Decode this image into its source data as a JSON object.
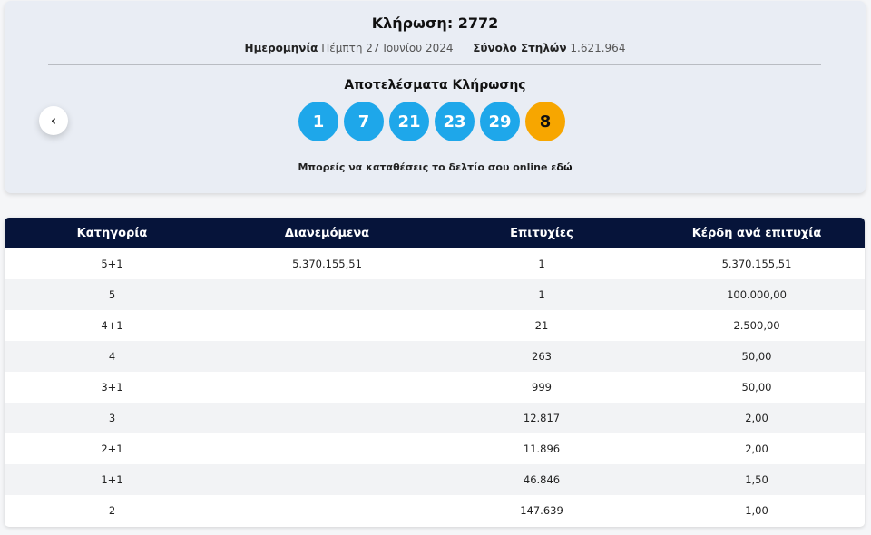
{
  "draw": {
    "title": "Κλήρωση: 2772",
    "date_label": "Ημερομηνία",
    "date_value": "Πέμπτη 27 Ιουνίου 2024",
    "columns_label": "Σύνολο Στηλών",
    "columns_value": "1.621.964",
    "results_title": "Αποτελέσματα Κλήρωσης",
    "numbers": [
      "1",
      "7",
      "21",
      "23",
      "29"
    ],
    "bonus": "8",
    "online_text": "Μπορείς να καταθέσεις το δελτίο σου online ",
    "online_link": "εδώ",
    "prev_icon": "chevron-left-icon",
    "colors": {
      "ball": "#1ea7ea",
      "bonus": "#f7a600",
      "header": "#06143a"
    }
  },
  "table": {
    "headers": [
      "Κατηγορία",
      "Διανεμόμενα",
      "Επιτυχίες",
      "Κέρδη ανά επιτυχία"
    ],
    "rows": [
      [
        "5+1",
        "5.370.155,51",
        "1",
        "5.370.155,51"
      ],
      [
        "5",
        "",
        "1",
        "100.000,00"
      ],
      [
        "4+1",
        "",
        "21",
        "2.500,00"
      ],
      [
        "4",
        "",
        "263",
        "50,00"
      ],
      [
        "3+1",
        "",
        "999",
        "50,00"
      ],
      [
        "3",
        "",
        "12.817",
        "2,00"
      ],
      [
        "2+1",
        "",
        "11.896",
        "2,00"
      ],
      [
        "1+1",
        "",
        "46.846",
        "1,50"
      ],
      [
        "2",
        "",
        "147.639",
        "1,00"
      ]
    ]
  }
}
